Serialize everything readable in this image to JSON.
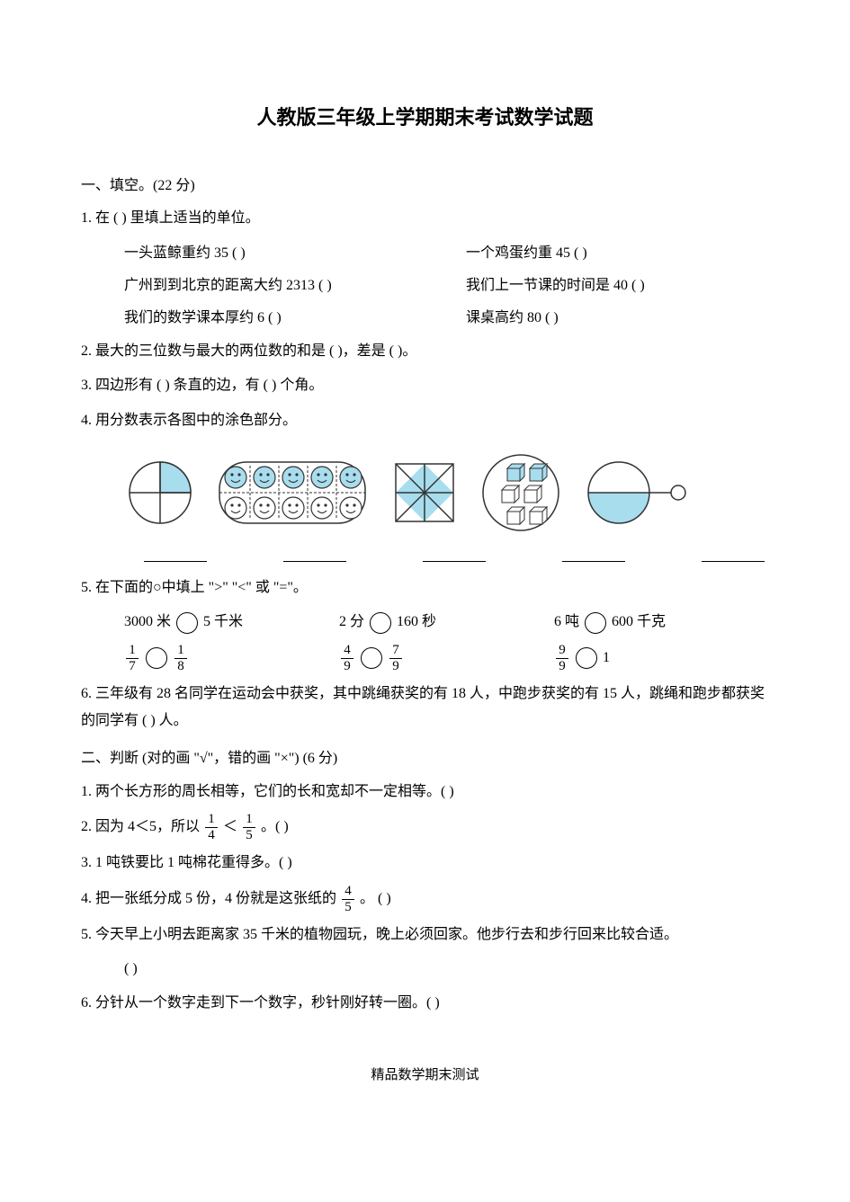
{
  "title": "人教版三年级上学期期末考试数学试题",
  "section1": {
    "header": "一、填空。(22 分)",
    "q1": {
      "stem": "1.   在 (        ) 里填上适当的单位。",
      "row1a": "一头蓝鲸重约 35 (         )",
      "row1b": "一个鸡蛋约重 45 (       )",
      "row2a": "广州到到北京的距离大约 2313 (       )",
      "row2b": "我们上一节课的时间是 40 (       )",
      "row3a": "我们的数学课本厚约 6 (       )",
      "row3b": "课桌高约 80 (       )"
    },
    "q2": "2. 最大的三位数与最大的两位数的和是 (       )，差是 (       )。",
    "q3": "3. 四边形有 (       ) 条直的边，有 (       ) 个角。",
    "q4": "4. 用分数表示各图中的涂色部分。",
    "q5": {
      "stem": "5. 在下面的○中填上 \">\" \"<\" 或 \"=\"。",
      "row1": [
        {
          "left": "3000 米",
          "right": "5 千米"
        },
        {
          "left": "2 分",
          "right": "160 秒"
        },
        {
          "left": "6 吨",
          "right": "600 千克"
        }
      ],
      "row2": [
        {
          "leftN": "1",
          "leftD": "7",
          "rightN": "1",
          "rightD": "8"
        },
        {
          "leftN": "4",
          "leftD": "9",
          "rightN": "7",
          "rightD": "9"
        },
        {
          "leftN": "9",
          "leftD": "9",
          "rightPlain": "1"
        }
      ]
    },
    "q6": "6. 三年级有 28 名同学在运动会中获奖，其中跳绳获奖的有 18 人，中跑步获奖的有 15 人，跳绳和跑步都获奖的同学有 (         ) 人。"
  },
  "section2": {
    "header": "二、判断 (对的画 \"√\"，错的画 \"×\") (6 分)",
    "q1": "1. 两个长方形的周长相等，它们的长和宽却不一定相等。(      )",
    "q2_pre": "2. 因为 4＜5，所以",
    "q2_f1n": "1",
    "q2_f1d": "4",
    "q2_mid": "＜",
    "q2_f2n": "1",
    "q2_f2d": "5",
    "q2_post": "。(      )",
    "q3": "3. 1 吨铁要比 1 吨棉花重得多。(      )",
    "q4_pre": "4.  把一张纸分成 5 份，4 份就是这张纸的",
    "q4_fn": "4",
    "q4_fd": "5",
    "q4_post": "。     (      )",
    "q5a": "5.  今天早上小明去距离家 35 千米的植物园玩，晚上必须回家。他步行去和步行回来比较合适。",
    "q5b": "(      )",
    "q6": "6.  分针从一个数字走到下一个数字，秒针刚好转一圈。(       )"
  },
  "footer": "精品数学期末测试",
  "colors": {
    "shade": "#a8ddee",
    "line": "#333333",
    "face": "#333333"
  }
}
